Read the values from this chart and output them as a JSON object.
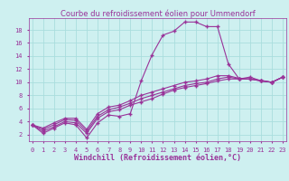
{
  "title": "Courbe du refroidissement éolien pour Ummendorf",
  "xlabel": "Windchill (Refroidissement éolien,°C)",
  "bg_color": "#cef0f0",
  "line_color": "#993399",
  "grid_color": "#aadddd",
  "x_ticks": [
    0,
    1,
    2,
    3,
    4,
    5,
    6,
    7,
    8,
    9,
    10,
    11,
    12,
    13,
    14,
    15,
    16,
    17,
    18,
    19,
    20,
    21,
    22,
    23
  ],
  "y_ticks": [
    2,
    4,
    6,
    8,
    10,
    12,
    14,
    16,
    18
  ],
  "xlim": [
    -0.3,
    23.3
  ],
  "ylim": [
    1.0,
    19.8
  ],
  "series": [
    [
      3.5,
      2.2,
      3.0,
      3.8,
      3.5,
      1.5,
      3.8,
      5.0,
      4.8,
      5.2,
      10.2,
      14.2,
      17.2,
      17.8,
      19.2,
      19.2,
      18.5,
      18.5,
      12.8,
      10.5,
      10.8,
      10.2,
      10.0,
      10.8
    ],
    [
      3.5,
      2.5,
      3.2,
      4.0,
      3.8,
      2.2,
      4.5,
      5.5,
      5.8,
      6.5,
      7.0,
      7.5,
      8.2,
      8.8,
      9.2,
      9.5,
      9.8,
      10.2,
      10.5,
      10.5,
      10.5,
      10.3,
      10.0,
      10.8
    ],
    [
      3.5,
      2.8,
      3.5,
      4.3,
      4.2,
      2.5,
      4.8,
      5.8,
      6.2,
      6.8,
      7.5,
      8.0,
      8.5,
      9.0,
      9.5,
      9.8,
      10.0,
      10.5,
      10.8,
      10.5,
      10.5,
      10.2,
      10.0,
      10.8
    ],
    [
      3.5,
      3.0,
      3.8,
      4.5,
      4.5,
      2.8,
      5.2,
      6.2,
      6.5,
      7.2,
      8.0,
      8.5,
      9.0,
      9.5,
      10.0,
      10.2,
      10.5,
      11.0,
      11.0,
      10.6,
      10.5,
      10.2,
      10.0,
      10.8
    ]
  ],
  "marker": "+",
  "markersize": 3,
  "linewidth": 0.8,
  "title_fontsize": 6.0,
  "tick_fontsize": 5.0,
  "xlabel_fontsize": 6.0
}
